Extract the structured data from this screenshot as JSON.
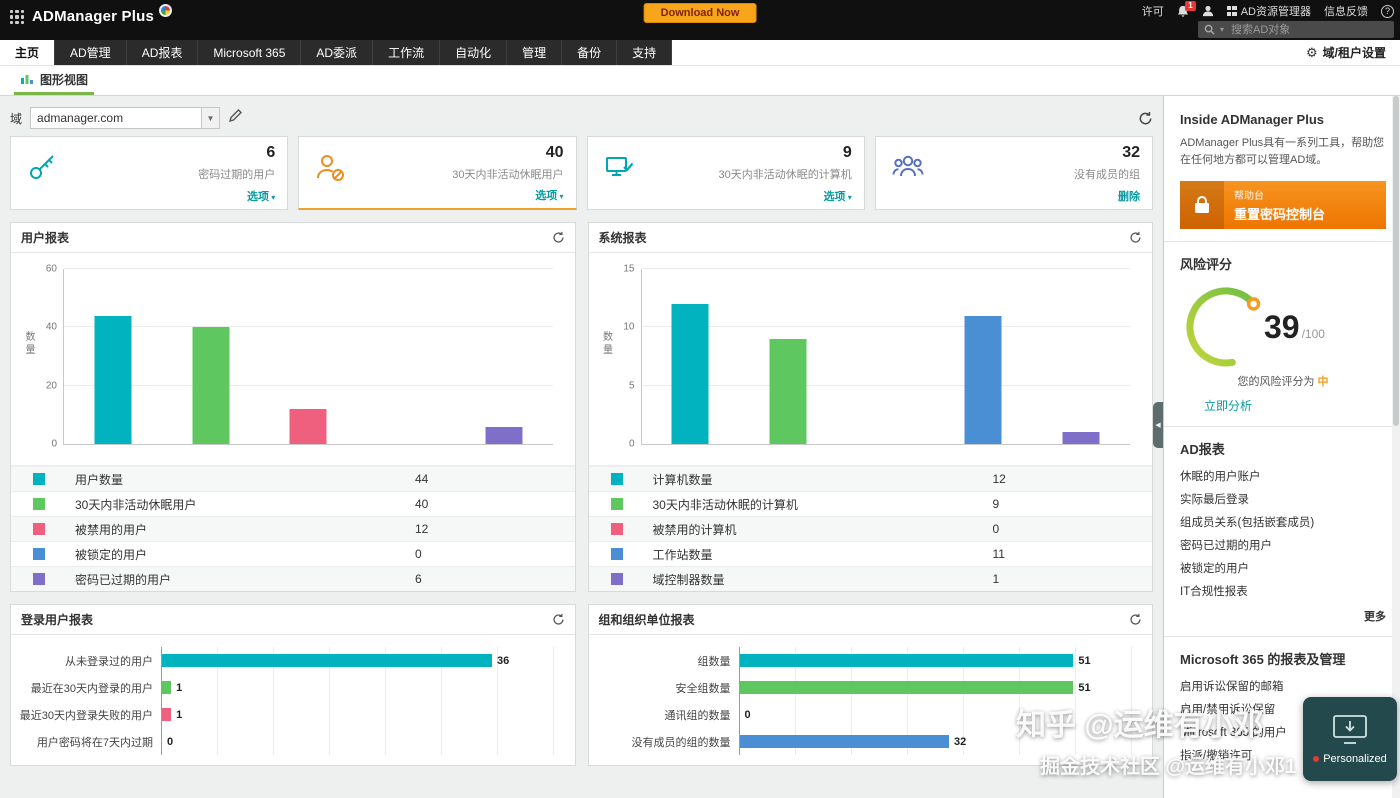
{
  "topbar": {
    "logo": "ADManager Plus",
    "download": "Download Now",
    "license": "许可",
    "notification_count": "1",
    "ad_explorer": "AD资源管理器",
    "feedback": "信息反馈",
    "search_placeholder": "搜索AD对象"
  },
  "nav": {
    "tabs": [
      "主页",
      "AD管理",
      "AD报表",
      "Microsoft 365",
      "AD委派",
      "工作流",
      "自动化",
      "管理",
      "备份",
      "支持"
    ],
    "active_tab": "主页",
    "domain_settings": "域/租户设置",
    "subtab": "图形视图"
  },
  "toolbar": {
    "domain_label": "域",
    "domain_value": "admanager.com"
  },
  "cards": [
    {
      "icon": "key-icon",
      "value": "6",
      "label": "密码过期的用户",
      "action": "选项",
      "action_caret": true
    },
    {
      "icon": "inactive-user-icon",
      "value": "40",
      "label": "30天内非活动休眠用户",
      "action": "选项",
      "action_caret": true
    },
    {
      "icon": "computer-icon",
      "value": "9",
      "label": "30天内非活动休眠的计算机",
      "action": "选项",
      "action_caret": true
    },
    {
      "icon": "group-icon",
      "value": "32",
      "label": "没有成员的组",
      "action": "删除",
      "action_caret": false
    }
  ],
  "chart_data": [
    {
      "type": "bar",
      "title": "用户报表",
      "ylabel": "数量",
      "ylim": [
        0,
        60
      ],
      "yticks": [
        0,
        20,
        40,
        60
      ],
      "grid": true,
      "categories": [
        "用户数量",
        "30天内非活动休眠用户",
        "被禁用的用户",
        "被锁定的用户",
        "密码已过期的用户"
      ],
      "values": [
        44,
        40,
        12,
        0,
        6
      ],
      "colors": [
        "#00b3be",
        "#5fc75f",
        "#ef5f7e",
        "#4a8fd4",
        "#7f6fc9"
      ]
    },
    {
      "type": "bar",
      "title": "系统报表",
      "ylabel": "数量",
      "ylim": [
        0,
        15
      ],
      "yticks": [
        0,
        5,
        10,
        15
      ],
      "grid": true,
      "categories": [
        "计算机数量",
        "30天内非活动休眠的计算机",
        "被禁用的计算机",
        "工作站数量",
        "域控制器数量"
      ],
      "values": [
        12,
        9,
        0,
        11,
        1
      ],
      "colors": [
        "#00b3be",
        "#5fc75f",
        "#ef5f7e",
        "#4a8fd4",
        "#7f6fc9"
      ]
    },
    {
      "type": "bar_horizontal",
      "title": "登录用户报表",
      "xmax": 40,
      "grid": true,
      "categories": [
        "从未登录过的用户",
        "最近在30天内登录的用户",
        "最近30天内登录失败的用户",
        "用户密码将在7天内过期"
      ],
      "values": [
        36,
        1,
        1,
        0
      ],
      "colors": [
        "#00b3be",
        "#5fc75f",
        "#ef5f7e",
        "#4a8fd4"
      ]
    },
    {
      "type": "bar_horizontal",
      "title": "组和组织单位报表",
      "xmax": 56,
      "grid": true,
      "categories": [
        "组数量",
        "安全组数量",
        "通讯组的数量",
        "没有成员的组的数量"
      ],
      "values": [
        51,
        51,
        0,
        32
      ],
      "colors": [
        "#00b3be",
        "#5fc75f",
        "#ef5f7e",
        "#4a8fd4"
      ]
    }
  ],
  "sidebar": {
    "title": "Inside ADManager Plus",
    "description": "ADManager Plus具有一系列工具，帮助您在任何地方都可以管理AD域。",
    "banner": {
      "small": "帮助台",
      "big": "重置密码控制台"
    },
    "risk": {
      "title": "风险评分",
      "score": "39",
      "total": "/100",
      "label_prefix": "您的风险评分为",
      "level": "中",
      "action": "立即分析"
    },
    "ad_reports": {
      "title": "AD报表",
      "links": [
        "休眠的用户账户",
        "实际最后登录",
        "组成员关系(包括嵌套成员)",
        "密码已过期的用户",
        "被锁定的用户",
        "IT合规性报表"
      ],
      "more": "更多"
    },
    "m365": {
      "title": "Microsoft 365 的报表及管理",
      "links": [
        "启用诉讼保留的邮箱",
        "启用/禁用诉讼保留",
        "Microsoft 365 的用户",
        "指派/撤销许可"
      ]
    }
  },
  "overlays": {
    "watermark1": "知乎 @运维有小邓",
    "watermark2": "掘金技术社区 @运维有小邓1",
    "personalized": "Personalized"
  }
}
